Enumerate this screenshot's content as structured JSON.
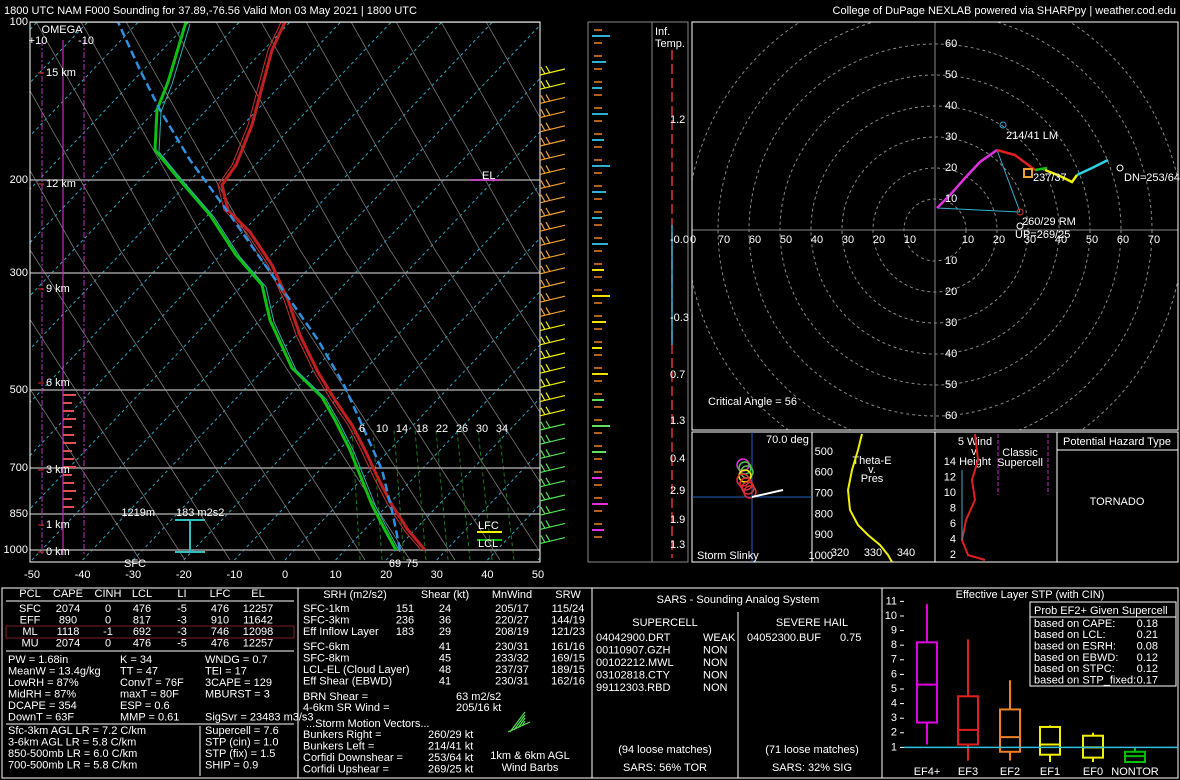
{
  "header": {
    "title": "1800 UTC NAM F000 Sounding for 37.89,-76.56 Valid  Mon 03 May 2021 | 1800 UTC",
    "credit": "College of DuPage NEXLAB powered via SHARPpy | weather.cod.edu"
  },
  "skewt": {
    "pressure_labels": [
      "100",
      "200",
      "300",
      "500",
      "700",
      "850",
      "1000"
    ],
    "height_labels": [
      "15 km",
      "12 km",
      "9 km",
      "6 km",
      "3 km",
      "1 km",
      "0 km"
    ],
    "temperature_labels": [
      "-50",
      "-40",
      "-30",
      "-20",
      "-10",
      "0",
      "10",
      "20",
      "30",
      "40",
      "50"
    ],
    "omega_title": "OMEGA",
    "omega_scale": [
      "+10",
      "-10"
    ],
    "el": "EL",
    "lfc": "LFC",
    "lcl": "LCL",
    "sfc": "SFC",
    "sfc_dewpoint": "69",
    "sfc_temp": "75",
    "inflow_base": "1219m",
    "inflow_srh": "183 m2s2",
    "mixing_ratios": [
      "6",
      "10",
      "14",
      "18",
      "22",
      "26",
      "30",
      "34"
    ]
  },
  "inferred_temp": {
    "title": [
      "Inf.",
      "Temp."
    ],
    "values": [
      "1.2",
      "-0.0",
      "-0.3",
      "0.7",
      "1.3",
      "0.4",
      "2.9",
      "1.9",
      "1.3"
    ]
  },
  "hodograph": {
    "up_labels": [
      "60",
      "50",
      "40",
      "30",
      "20",
      "10"
    ],
    "down_labels": [
      "10",
      "20",
      "30",
      "40",
      "50",
      "60"
    ],
    "left_labels": [
      "0",
      "70",
      "60",
      "50",
      "40",
      "30",
      "20",
      "10"
    ],
    "right_labels": [
      "10",
      "20",
      "30",
      "40",
      "50",
      "60",
      "70",
      "8"
    ],
    "lm": "214/41 LM",
    "mean": "237/37",
    "dn": "DN=253/64",
    "rm": "260/29 RM",
    "up": "UP=269/25",
    "critical_angle": "Critical Angle = 56"
  },
  "insets": {
    "slinky_angle": "70.0 deg",
    "slinky_title": "Storm Slinky",
    "theta_title": [
      "Theta-E",
      "v.",
      "Pres"
    ],
    "theta_pressure": [
      "500",
      "600",
      "700",
      "800",
      "900",
      "1000"
    ],
    "theta_temps": [
      "320",
      "330",
      "340"
    ],
    "wind_title": [
      "5 Wind",
      "v.",
      "Height"
    ],
    "wind_heights": [
      "14",
      "12",
      "10",
      "8",
      "6",
      "4",
      "2"
    ],
    "wind_class": [
      "Classic",
      "Supercell"
    ],
    "hazard_title": "Potential Hazard Type",
    "hazard": "TORNADO"
  },
  "parcels": {
    "headers": [
      "PCL",
      "CAPE",
      "CINH",
      "LCL",
      "LI",
      "LFC",
      "EL"
    ],
    "rows": [
      [
        "SFC",
        "2074",
        "0",
        "476",
        "-5",
        "476",
        "12257"
      ],
      [
        "EFF",
        "890",
        "0",
        "817",
        "-3",
        "910",
        "11642"
      ],
      [
        "ML",
        "1118",
        "-1",
        "692",
        "-3",
        "746",
        "12098"
      ],
      [
        "MU",
        "2074",
        "0",
        "476",
        "-5",
        "476",
        "12257"
      ]
    ]
  },
  "indices": [
    [
      "PW = 1.68in",
      "K = 34",
      "WNDG = 0.7"
    ],
    [
      "MeanW = 13.4g/kg",
      "TT = 47",
      "TEI = 17"
    ],
    [
      "LowRH = 87%",
      "ConvT = 76F",
      "3CAPE = 129"
    ],
    [
      "MidRH = 87%",
      "maxT = 80F",
      "MBURST = 3"
    ],
    [
      "DCAPE = 354",
      "ESP = 0.6"
    ],
    [
      "DownT = 63F",
      "MMP = 0.61",
      "SigSvr = 23483 m3/s3"
    ]
  ],
  "lapse_rates": [
    "Sfc-3km AGL LR = 7.2 C/km",
    "3-6km AGL LR = 5.8 C/km",
    "850-500mb LR = 6.0 C/km",
    "700-500mb LR = 5.8 C/km"
  ],
  "composites": [
    "Supercell = 7.6",
    "STP (cin) = 1.0",
    "STP (fix) = 1.5",
    "SHIP = 0.9"
  ],
  "kinematics": {
    "headers": [
      "SRH (m2/s2)",
      "Shear (kt)",
      "MnWind",
      "SRW"
    ],
    "srh_rows": [
      [
        "SFC-1km",
        "151",
        "24",
        "205/17",
        "115/24"
      ],
      [
        "SFC-3km",
        "236",
        "36",
        "220/27",
        "144/19"
      ],
      [
        "Eff Inflow Layer",
        "183",
        "29",
        "208/19",
        "121/23"
      ]
    ],
    "deep_rows": [
      [
        "SFC-6km",
        "41",
        "230/31",
        "161/16"
      ],
      [
        "SFC-8km",
        "45",
        "233/32",
        "169/15"
      ],
      [
        "LCL-EL (Cloud Layer)",
        "48",
        "237/37",
        "189/15"
      ],
      [
        "Eff Shear (EBWD)",
        "41",
        "230/31",
        "162/16"
      ]
    ],
    "brn": [
      "BRN Shear =",
      "63 m2/s2"
    ],
    "sr_wind": [
      "4-6km SR Wind =",
      "205/16 kt"
    ],
    "motion_title": "...Storm Motion Vectors...",
    "motions": [
      [
        "Bunkers Right =",
        "260/29 kt"
      ],
      [
        "Bunkers Left =",
        "214/41 kt"
      ],
      [
        "Corfidi Downshear =",
        "253/64 kt"
      ],
      [
        "Corfidi Upshear =",
        "269/25 kt"
      ]
    ],
    "barb_caption": [
      "1km & 6km AGL",
      "Wind Barbs"
    ]
  },
  "sars": {
    "title": "SARS - Sounding Analog System",
    "supercell_title": "SUPERCELL",
    "hail_title": "SEVERE HAIL",
    "supercell_matches": [
      [
        "04042900.DRT",
        "WEAK"
      ],
      [
        "00110907.GZH",
        "NON"
      ],
      [
        "00102212.MWL",
        "NON"
      ],
      [
        "03102818.CTY",
        "NON"
      ],
      [
        "99112303.RBD",
        "NON"
      ]
    ],
    "hail_matches": [
      [
        "04052300.BUF",
        "0.75"
      ]
    ],
    "supercell_loose": "(94 loose matches)",
    "supercell_result": "SARS: 56% TOR",
    "hail_loose": "(71 loose matches)",
    "hail_result": "SARS: 32% SIG"
  },
  "stp_probability": {
    "title": "Prob EF2+ Given Supercell",
    "rows": [
      [
        "based on CAPE:",
        "0.18"
      ],
      [
        "based on LCL:",
        "0.21"
      ],
      [
        "based on ESRH:",
        "0.08"
      ],
      [
        "based on EBWD:",
        "0.12"
      ],
      [
        "based on STPC:",
        "0.12"
      ],
      [
        "based on STP_fixed:",
        "0.17"
      ]
    ]
  },
  "chart_data": {
    "type": "box",
    "title": "Effective Layer STP (with CIN)",
    "categories": [
      "EF4+",
      "EF3",
      "EF2",
      "EF1",
      "EF0",
      "NONTOR"
    ],
    "whisker_low": [
      1.2,
      0.1,
      0.1,
      0,
      0,
      0
    ],
    "q1": [
      2.7,
      1.2,
      0.7,
      0.5,
      0.3,
      0
    ],
    "median": [
      5.3,
      2.2,
      1.7,
      1.2,
      1.0,
      0.4
    ],
    "q3": [
      8.2,
      4.5,
      3.6,
      2.4,
      1.8,
      0.7
    ],
    "whisker_high": [
      10.8,
      8.4,
      5.6,
      2.5,
      2.0,
      1.0
    ],
    "colors": [
      "#e000e0",
      "#e02020",
      "#f08020",
      "#f0f000",
      "#f0f000",
      "#00c000"
    ],
    "ylim": [
      0,
      11.3
    ],
    "yticks": [
      1,
      2,
      3,
      4,
      5,
      6,
      7,
      8,
      9,
      10,
      11
    ],
    "marker_value": 1.0
  }
}
